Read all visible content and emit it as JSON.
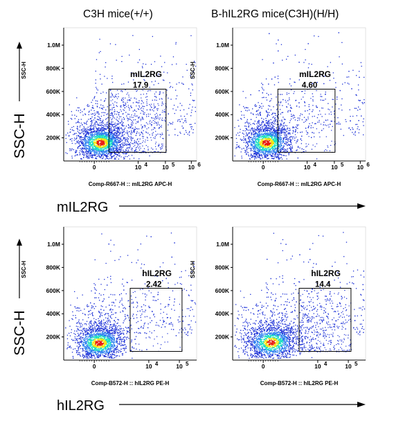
{
  "column_titles": [
    "C3H mice(+/+)",
    "B-hIL2RG mice(C3H)(H/H)"
  ],
  "row_axis_labels": {
    "y_outer": "SSC-H",
    "x_outer": [
      "mIL2RG",
      "hIL2RG"
    ]
  },
  "colors": {
    "axis": "#000000",
    "gate": "#000000",
    "density_low": "#1a2fd6",
    "density_mid": "#18e0c0",
    "density_high": "#e81a10"
  },
  "chart_data": [
    {
      "type": "scatter",
      "row": 0,
      "col": 0,
      "sample": "C3H mice(+/+)",
      "xlabel": "Comp-R667-H :: mIL2RG APC-H",
      "ylabel": "SSC-H",
      "y_ticks": [
        "200K",
        "400K",
        "600K",
        "800K",
        "1.0M"
      ],
      "x_ticks": [
        "0",
        "10",
        "10",
        "10"
      ],
      "x_tick_exponents": [
        "",
        "4",
        "5",
        "6"
      ],
      "gate": {
        "name": "mIL2RG",
        "percent": "17.9"
      },
      "population": {
        "center_x": 0.4,
        "center_y": 160000,
        "spread_x": 0.55,
        "spread_y": 90000
      }
    },
    {
      "type": "scatter",
      "row": 0,
      "col": 1,
      "sample": "B-hIL2RG mice(C3H)(H/H)",
      "xlabel": "Comp-R667-H :: mIL2RG APC-H",
      "ylabel": "SSC-H",
      "y_ticks": [
        "200K",
        "400K",
        "600K",
        "800K",
        "1.0M"
      ],
      "x_ticks": [
        "0",
        "10",
        "10",
        "10"
      ],
      "x_tick_exponents": [
        "",
        "4",
        "5",
        "6"
      ],
      "gate": {
        "name": "mIL2RG",
        "percent": "4.60"
      },
      "population": {
        "center_x": 0.2,
        "center_y": 160000,
        "spread_x": 0.4,
        "spread_y": 90000
      }
    },
    {
      "type": "scatter",
      "row": 1,
      "col": 0,
      "sample": "C3H mice(+/+)",
      "xlabel": "Comp-B572-H :: hIL2RG PE-H",
      "ylabel": "SSC-H",
      "y_ticks": [
        "200K",
        "400K",
        "600K",
        "800K",
        "1.0M"
      ],
      "x_ticks": [
        "0",
        "10",
        "10"
      ],
      "x_tick_exponents": [
        "",
        "4",
        "5"
      ],
      "gate": {
        "name": "hIL2RG",
        "percent": "2.42"
      },
      "population": {
        "center_x": 0.3,
        "center_y": 150000,
        "spread_x": 0.45,
        "spread_y": 85000
      }
    },
    {
      "type": "scatter",
      "row": 1,
      "col": 1,
      "sample": "B-hIL2RG mice(C3H)(H/H)",
      "xlabel": "Comp-B572-H :: hIL2RG PE-H",
      "ylabel": "SSC-H",
      "y_ticks": [
        "200K",
        "400K",
        "600K",
        "800K",
        "1.0M"
      ],
      "x_ticks": [
        "0",
        "10",
        "10"
      ],
      "x_tick_exponents": [
        "",
        "4",
        "5"
      ],
      "gate": {
        "name": "hIL2RG",
        "percent": "14.4"
      },
      "population": {
        "center_x": 0.5,
        "center_y": 155000,
        "spread_x": 0.7,
        "spread_y": 90000
      }
    }
  ]
}
